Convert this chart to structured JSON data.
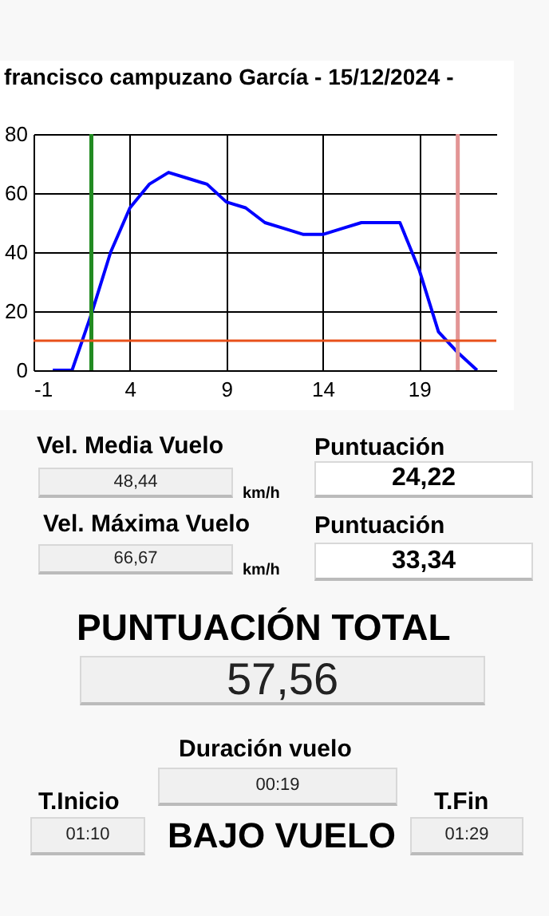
{
  "chart_data": [
    {
      "type": "line",
      "title": "francisco campuzano García   -   15/12/2024   -",
      "x": [
        0,
        1,
        2,
        3,
        4,
        5,
        6,
        7,
        8,
        9,
        10,
        11,
        12,
        13,
        14,
        15,
        16,
        17,
        18,
        19,
        20,
        21,
        22
      ],
      "series": [
        {
          "color": "#0000ff",
          "values": [
            0,
            0,
            19,
            40,
            55,
            63,
            67,
            65,
            63,
            57,
            55,
            50,
            48,
            46,
            46,
            48,
            50,
            50,
            50,
            34,
            13,
            6,
            0
          ]
        }
      ],
      "xlim": [
        -1,
        23
      ],
      "xticks": [
        -1,
        4,
        9,
        14,
        19
      ],
      "ylim": [
        0,
        80
      ],
      "yticks": [
        0,
        20,
        40,
        60,
        80
      ],
      "grid": true,
      "marker": "none",
      "line_style": "solid",
      "ref_lines": [
        {
          "axis": "x",
          "value": 2,
          "color": "#228b22"
        },
        {
          "axis": "x",
          "value": 21,
          "color": "#e39595"
        },
        {
          "axis": "y",
          "value": 10,
          "color": "#e8501a"
        }
      ]
    },
    {
      "type": "other",
      "annotations": [
        "Vel. Media Vuelo",
        "48,44",
        "km/h",
        "Puntuación",
        "24,22",
        "Vel. Máxima Vuelo",
        "66,67",
        "km/h",
        "Puntuación",
        "33,34",
        "PUNTUACIÓN TOTAL",
        "57,56",
        "Duración vuelo",
        "00:19",
        "T.Inicio",
        "01:10",
        "BAJO VUELO",
        "T.Fin",
        "01:29"
      ]
    }
  ]
}
